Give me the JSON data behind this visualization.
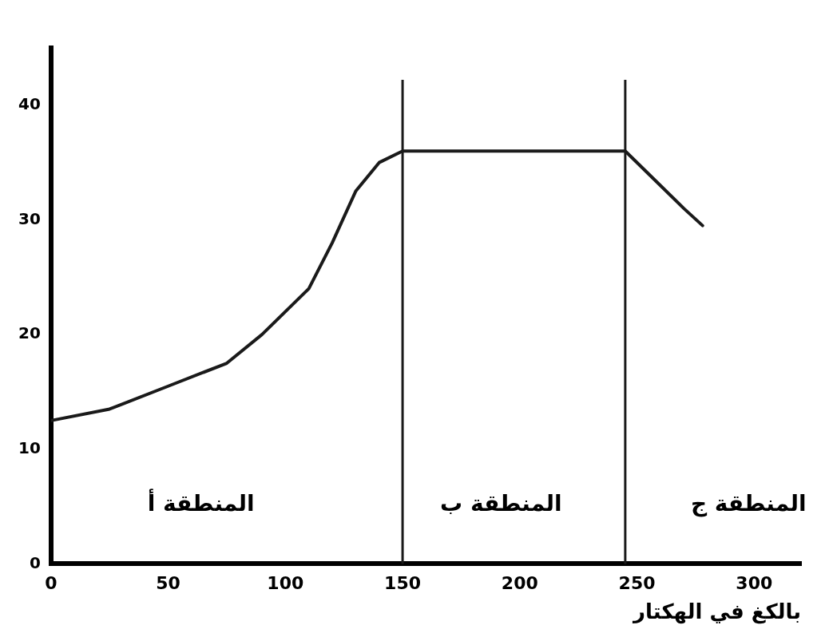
{
  "chart_data": {
    "type": "line",
    "xlabel": "بالكغ في الهكتار",
    "x": [
      0,
      25,
      50,
      75,
      90,
      100,
      110,
      120,
      130,
      140,
      150,
      200,
      245,
      255,
      270,
      278
    ],
    "series": [
      {
        "color": "#1a1a1a",
        "values": [
          12.5,
          13.5,
          15.5,
          17.5,
          20,
          22,
          24,
          28,
          32.5,
          35,
          36,
          36,
          36,
          34,
          31,
          29.5
        ]
      }
    ],
    "xlim": [
      0,
      320
    ],
    "xticks": [
      0,
      50,
      100,
      150,
      200,
      250,
      300
    ],
    "ylim": [
      0,
      45
    ],
    "yticks": [
      0,
      10,
      20,
      30,
      40
    ],
    "ref_lines": [
      {
        "axis": "x",
        "value": 150
      },
      {
        "axis": "x",
        "value": 245
      }
    ],
    "annotations": [
      "المنطقة أ",
      "المنطقة ب",
      "المنطقة ج"
    ],
    "grid": false,
    "legend": false,
    "marker": "none",
    "line_style": "solid"
  }
}
